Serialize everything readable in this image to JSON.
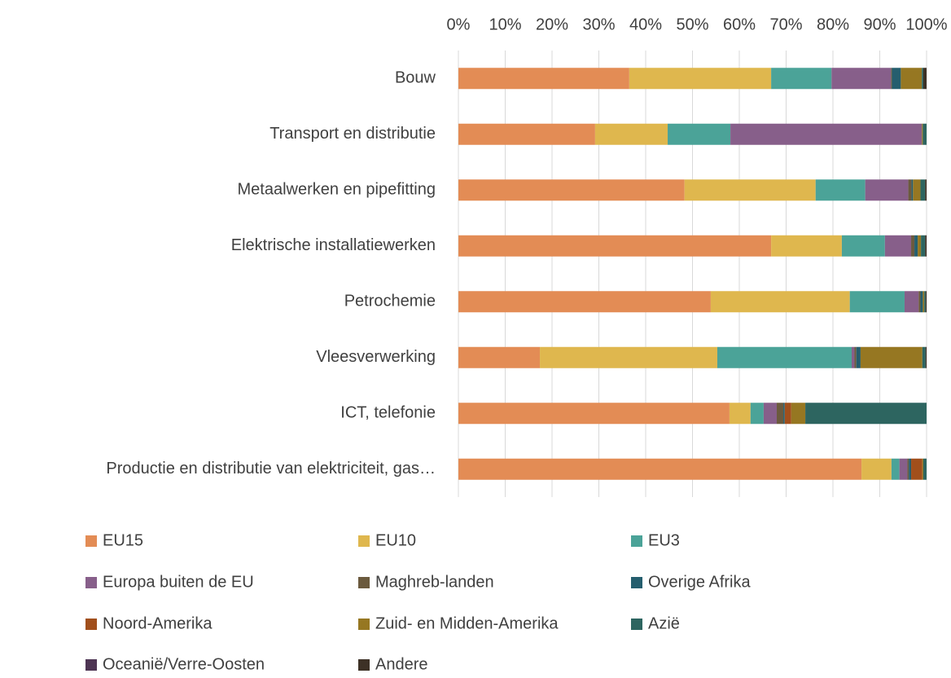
{
  "chart_data": {
    "type": "stacked-bar-horizontal",
    "categories": [
      "Bouw",
      "Transport en distributie",
      "Metaalwerken en pipefitting",
      "Elektrische installatiewerken",
      "Petrochemie",
      "Vleesverwerking",
      "ICT, telefonie",
      "Productie en distributie van elektriciteit, gas…"
    ],
    "series": [
      {
        "name": "EU15",
        "color": "#e38c55",
        "values": [
          36.5,
          29.2,
          48.3,
          66.8,
          53.9,
          17.4,
          57.9,
          86.1
        ]
      },
      {
        "name": "EU10",
        "color": "#dfb74e",
        "values": [
          30.3,
          15.5,
          28.0,
          15.1,
          29.7,
          37.9,
          4.5,
          6.4
        ]
      },
      {
        "name": "EU3",
        "color": "#4ba398",
        "values": [
          12.9,
          13.4,
          10.6,
          9.2,
          11.7,
          28.7,
          2.8,
          1.7
        ]
      },
      {
        "name": "Europa buiten de EU",
        "color": "#875f8a",
        "values": [
          12.7,
          40.9,
          9.2,
          5.6,
          3.0,
          0.6,
          2.8,
          1.7
        ]
      },
      {
        "name": "Maghreb-landen",
        "color": "#6b5a3e",
        "values": [
          0.2,
          0,
          0.7,
          0.7,
          0.4,
          0.4,
          1.4,
          0.3
        ]
      },
      {
        "name": "Overige Afrika",
        "color": "#255e6e",
        "values": [
          1.9,
          0,
          0.3,
          0.7,
          0.5,
          0.9,
          0.3,
          0.5
        ]
      },
      {
        "name": "Noord-Amerika",
        "color": "#a14f1c",
        "values": [
          0,
          0,
          0,
          0,
          0,
          0,
          1.4,
          2.4
        ]
      },
      {
        "name": "Zuid- en Midden-Amerika",
        "color": "#967722",
        "values": [
          4.5,
          0.2,
          1.6,
          0.7,
          0.3,
          13.2,
          3.0,
          0.2
        ]
      },
      {
        "name": "Azië",
        "color": "#2d6560",
        "values": [
          0.3,
          0.8,
          1.0,
          0.9,
          0.3,
          0.7,
          25.9,
          0.7
        ]
      },
      {
        "name": "Oceanië/Verre-Oosten",
        "color": "#4e3553",
        "values": [
          0,
          0,
          0,
          0,
          0,
          0,
          0,
          0
        ]
      },
      {
        "name": "Andere",
        "color": "#3d3126",
        "values": [
          0.7,
          0,
          0.3,
          0.3,
          0.2,
          0.2,
          0,
          0
        ]
      }
    ],
    "xlim": [
      0,
      100
    ],
    "xticks": [
      {
        "value": 0,
        "label": "0%"
      },
      {
        "value": 10,
        "label": "10%"
      },
      {
        "value": 20,
        "label": "20%"
      },
      {
        "value": 30,
        "label": "30%"
      },
      {
        "value": 40,
        "label": "40%"
      },
      {
        "value": 50,
        "label": "50%"
      },
      {
        "value": 60,
        "label": "60%"
      },
      {
        "value": 70,
        "label": "70%"
      },
      {
        "value": 80,
        "label": "80%"
      },
      {
        "value": 90,
        "label": "90%"
      },
      {
        "value": 100,
        "label": "100%"
      }
    ],
    "grid": true,
    "legend": "bottom"
  }
}
